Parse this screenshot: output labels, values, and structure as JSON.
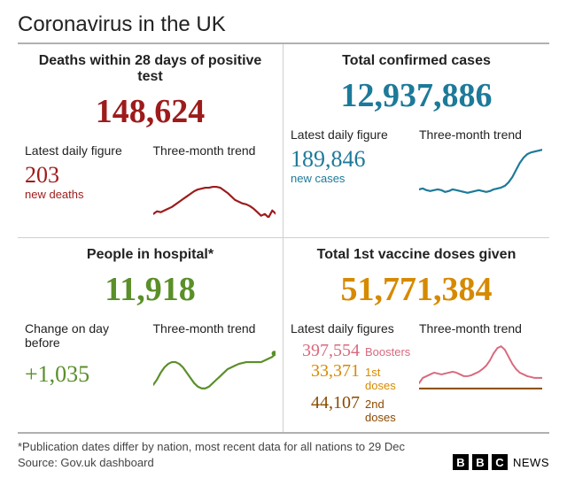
{
  "title": "Coronavirus in the UK",
  "colors": {
    "deaths": "#9e1b1b",
    "cases": "#1d7a99",
    "hospital": "#5a8f29",
    "vaccine_total": "#d68a00",
    "vax_boosters": "#d86a7e",
    "vax_first": "#d68a00",
    "vax_second": "#8a4a00",
    "rule": "#b0b0b0",
    "divider": "#cfcfcf",
    "text": "#222222",
    "foot_text": "#444444",
    "bg": "#ffffff"
  },
  "panels": {
    "deaths": {
      "header": "Deaths within 28 days of positive test",
      "big": "148,624",
      "sub_left_label": "Latest daily figure",
      "sub_left_value": "203",
      "sub_left_caption": "new deaths",
      "sub_right_label": "Three-month trend",
      "spark": {
        "type": "line",
        "stroke_width": 2.2,
        "points": [
          58,
          55,
          56,
          54,
          52,
          50,
          47,
          44,
          41,
          38,
          35,
          32,
          30,
          29,
          28,
          28,
          27,
          27,
          28,
          31,
          34,
          38,
          42,
          44,
          46,
          47,
          49,
          52,
          56,
          60,
          58,
          62,
          54,
          58
        ]
      }
    },
    "cases": {
      "header": "Total confirmed cases",
      "big": "12,937,886",
      "sub_left_label": "Latest daily figure",
      "sub_left_value": "189,846",
      "sub_left_caption": "new cases",
      "sub_right_label": "Three-month trend",
      "spark": {
        "type": "line",
        "stroke_width": 2.2,
        "points": [
          48,
          47,
          49,
          50,
          49,
          48,
          49,
          51,
          50,
          48,
          49,
          50,
          51,
          52,
          51,
          50,
          49,
          50,
          51,
          50,
          48,
          47,
          46,
          44,
          40,
          34,
          26,
          18,
          12,
          8,
          6,
          5,
          4,
          3
        ]
      }
    },
    "hospital": {
      "header": "People in hospital*",
      "big": "11,918",
      "sub_left_label": "Change on day before",
      "sub_left_value": "+1,035",
      "sub_left_caption": "",
      "sub_right_label": "Three-month trend",
      "spark": {
        "type": "line",
        "stroke_width": 2.2,
        "end_dot": true,
        "points": [
          50,
          44,
          36,
          30,
          26,
          24,
          24,
          26,
          30,
          36,
          42,
          48,
          52,
          54,
          54,
          52,
          48,
          44,
          40,
          36,
          32,
          30,
          28,
          26,
          25,
          24,
          24,
          24,
          24,
          24,
          22,
          20,
          18,
          14
        ]
      }
    },
    "vaccine": {
      "header": "Total 1st vaccine doses given",
      "big": "51,771,384",
      "sub_left_label": "Latest daily figures",
      "rows": [
        {
          "value": "397,554",
          "label": "Boosters",
          "color_key": "vax_boosters"
        },
        {
          "value": "33,371",
          "label": "1st doses",
          "color_key": "vax_first"
        },
        {
          "value": "44,107",
          "label": "2nd doses",
          "color_key": "vax_second"
        }
      ],
      "sub_right_label": "Three-month trend",
      "sparks": [
        {
          "color_key": "vax_boosters",
          "stroke_width": 2,
          "points": [
            48,
            42,
            40,
            38,
            36,
            37,
            38,
            37,
            36,
            35,
            36,
            38,
            40,
            40,
            39,
            37,
            35,
            32,
            28,
            22,
            14,
            8,
            6,
            10,
            18,
            26,
            32,
            36,
            38,
            40,
            41,
            42,
            42,
            42
          ]
        },
        {
          "color_key": "vax_second",
          "stroke_width": 2,
          "points": [
            54,
            54,
            54,
            54,
            54,
            54,
            54,
            54,
            54,
            54,
            54,
            54,
            54,
            54,
            54,
            54,
            54,
            54,
            54,
            54,
            54,
            54,
            54,
            54,
            54,
            54,
            54,
            54,
            54,
            54,
            54,
            54,
            54,
            54
          ]
        }
      ]
    }
  },
  "footer": {
    "note1": "*Publication dates differ by nation, most recent data for all nations to 29 Dec",
    "note2": "Source: Gov.uk dashboard",
    "brand_letters": [
      "B",
      "B",
      "C"
    ],
    "brand_word": "NEWS"
  }
}
